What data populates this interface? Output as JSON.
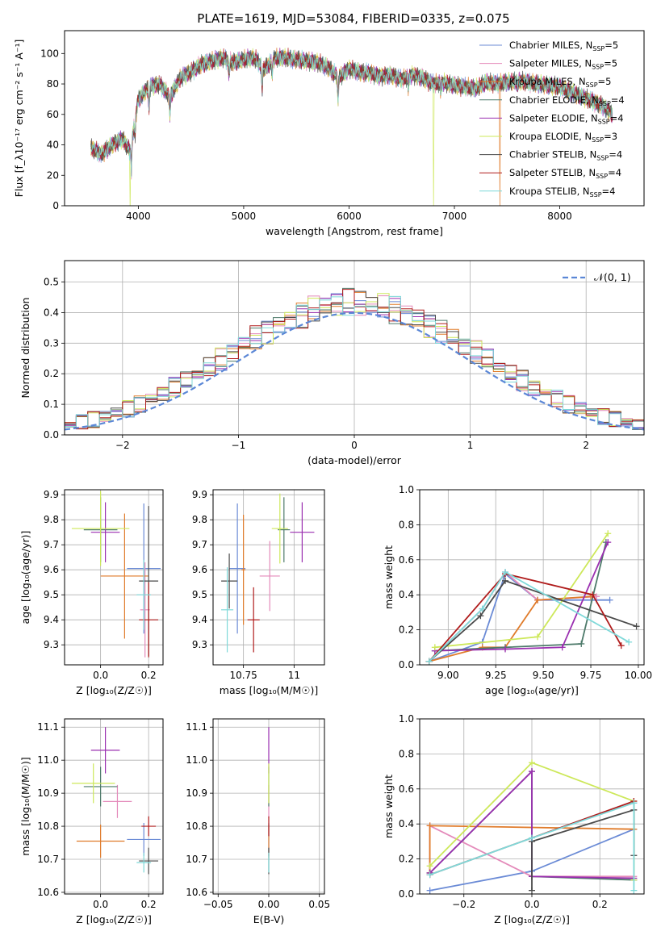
{
  "title": "PLATE=1619, MJD=53084, FIBERID=0335, z=0.075",
  "colors": {
    "Chabrier MILES": "#6b8bd6",
    "Salpeter MILES": "#e48aba",
    "Kroupa MILES": "#e07b2a",
    "Chabrier ELODIE": "#4d7a6a",
    "Salpeter ELODIE": "#9a2fb0",
    "Kroupa ELODIE": "#cde85a",
    "Chabrier STELIB": "#4a4a4a",
    "Salpeter STELIB": "#b01c1c",
    "Kroupa STELIB": "#7fd9d9"
  },
  "chart_data": [
    {
      "id": "spectrum",
      "type": "line",
      "xlabel": "wavelength [Angstrom, rest frame]",
      "ylabel": "Flux [f_λ10⁻¹⁷ erg cm⁻² s⁻¹ A⁻¹]",
      "xlim": [
        3300,
        8800
      ],
      "ylim": [
        0,
        115
      ],
      "xticks": [
        4000,
        5000,
        6000,
        7000,
        8000
      ],
      "yticks": [
        0,
        20,
        40,
        60,
        80,
        100
      ],
      "grid": false,
      "legend_placement": "top-right",
      "legend": [
        {
          "name": "Chabrier MILES",
          "label": "Chabrier MILES, N",
          "sub": "SSP",
          "suffix": "=5"
        },
        {
          "name": "Salpeter MILES",
          "label": "Salpeter MILES, N",
          "sub": "SSP",
          "suffix": "=5"
        },
        {
          "name": "Kroupa MILES",
          "label": "Kroupa MILES, N",
          "sub": "SSP",
          "suffix": "=5"
        },
        {
          "name": "Chabrier ELODIE",
          "label": "Chabrier ELODIE, N",
          "sub": "SSP",
          "suffix": "=4"
        },
        {
          "name": "Salpeter ELODIE",
          "label": "Salpeter ELODIE, N",
          "sub": "SSP",
          "suffix": "=4"
        },
        {
          "name": "Kroupa ELODIE",
          "label": "Kroupa ELODIE, N",
          "sub": "SSP",
          "suffix": "=3"
        },
        {
          "name": "Chabrier STELIB",
          "label": "Chabrier STELIB, N",
          "sub": "SSP",
          "suffix": "=4"
        },
        {
          "name": "Salpeter STELIB",
          "label": "Salpeter STELIB, N",
          "sub": "SSP",
          "suffix": "=4"
        },
        {
          "name": "Kroupa STELIB",
          "label": "Kroupa STELIB, N",
          "sub": "SSP",
          "suffix": "=4"
        }
      ],
      "continuum": [
        [
          3550,
          38
        ],
        [
          3650,
          34
        ],
        [
          3750,
          40
        ],
        [
          3850,
          44
        ],
        [
          3920,
          36
        ],
        [
          3960,
          52
        ],
        [
          4000,
          70
        ],
        [
          4100,
          78
        ],
        [
          4200,
          80
        ],
        [
          4300,
          72
        ],
        [
          4400,
          84
        ],
        [
          4500,
          88
        ],
        [
          4600,
          93
        ],
        [
          4700,
          95
        ],
        [
          4800,
          97
        ],
        [
          4900,
          94
        ],
        [
          5000,
          96
        ],
        [
          5100,
          97
        ],
        [
          5200,
          90
        ],
        [
          5300,
          97
        ],
        [
          5400,
          97
        ],
        [
          5500,
          96
        ],
        [
          5600,
          95
        ],
        [
          5700,
          94
        ],
        [
          5800,
          91
        ],
        [
          5900,
          84
        ],
        [
          6000,
          90
        ],
        [
          6100,
          88
        ],
        [
          6200,
          87
        ],
        [
          6300,
          85
        ],
        [
          6400,
          86
        ],
        [
          6500,
          83
        ],
        [
          6600,
          86
        ],
        [
          6700,
          84
        ],
        [
          6800,
          80
        ],
        [
          6900,
          81
        ],
        [
          7000,
          79
        ],
        [
          7100,
          78
        ],
        [
          7200,
          77
        ],
        [
          7300,
          81
        ],
        [
          7400,
          80
        ],
        [
          7600,
          82
        ],
        [
          7800,
          80
        ],
        [
          8000,
          78
        ],
        [
          8200,
          72
        ],
        [
          8400,
          66
        ],
        [
          8500,
          60
        ]
      ],
      "absorption_dips": [
        [
          3934,
          18
        ],
        [
          3969,
          10
        ],
        [
          4101,
          15
        ],
        [
          4300,
          14
        ],
        [
          4861,
          10
        ],
        [
          5175,
          16
        ],
        [
          5270,
          9
        ],
        [
          5895,
          16
        ],
        [
          6563,
          8
        ],
        [
          6870,
          6
        ],
        [
          7600,
          4
        ]
      ],
      "glitches": [
        {
          "series": "Kroupa ELODIE",
          "x": 3920
        },
        {
          "series": "Kroupa ELODIE",
          "x": 6800
        },
        {
          "series": "Kroupa MILES",
          "x": 7430
        }
      ]
    },
    {
      "id": "residual-histogram",
      "type": "bar",
      "xlabel": "(data-model)/error",
      "ylabel": "Normed distribution",
      "xlim": [
        -2.5,
        2.5
      ],
      "ylim": [
        0,
        0.57
      ],
      "xticks": [
        -2,
        -1,
        0,
        1,
        2
      ],
      "yticks": [
        0.0,
        0.1,
        0.2,
        0.3,
        0.4,
        0.5
      ],
      "grid": true,
      "reference_curve": {
        "label": "𝒩(0, 1)",
        "mean": 0,
        "sigma": 1,
        "color": "#5b87d6",
        "style": "dashed"
      },
      "legend_placement": "top-right",
      "bin_width": 0.1,
      "bin_start": -2.5,
      "bin_count": 50
    },
    {
      "id": "age-vs-Z",
      "type": "scatter",
      "xlabel": "Z [log₁₀(Z/Z☉)]",
      "ylabel": "age  [log₁₀(age/yr)]",
      "xlim": [
        -0.15,
        0.26
      ],
      "ylim": [
        9.22,
        9.92
      ],
      "xticks": [
        0.0,
        0.2
      ],
      "yticks": [
        9.3,
        9.4,
        9.5,
        9.6,
        9.7,
        9.8,
        9.9
      ],
      "grid": true,
      "points": [
        {
          "series": "Chabrier MILES",
          "x": 0.18,
          "y": 9.605,
          "xerr": 0.07,
          "yerr": 0.26
        },
        {
          "series": "Salpeter MILES",
          "x": 0.185,
          "y": 9.44,
          "xerr": 0.02,
          "yerr": 0.19
        },
        {
          "series": "Kroupa MILES",
          "x": 0.1,
          "y": 9.575,
          "xerr": 0.1,
          "yerr": 0.25
        },
        {
          "series": "Chabrier ELODIE",
          "x": 0.0,
          "y": 9.76,
          "xerr": 0.07,
          "yerr": 0.13
        },
        {
          "series": "Salpeter ELODIE",
          "x": 0.02,
          "y": 9.75,
          "xerr": 0.06,
          "yerr": 0.12
        },
        {
          "series": "Kroupa ELODIE",
          "x": 0.0,
          "y": 9.765,
          "xerr": 0.12,
          "yerr": 0.15
        },
        {
          "series": "Chabrier STELIB",
          "x": 0.2,
          "y": 9.555,
          "xerr": 0.04,
          "yerr": 0.3
        },
        {
          "series": "Salpeter STELIB",
          "x": 0.2,
          "y": 9.4,
          "xerr": 0.04,
          "yerr": 0.15
        },
        {
          "series": "Kroupa STELIB",
          "x": 0.18,
          "y": 9.5,
          "xerr": 0.03,
          "yerr": 0.14
        }
      ]
    },
    {
      "id": "age-vs-mass",
      "type": "scatter",
      "xlabel": "mass [log₁₀(M/M☉)]",
      "ylabel": "",
      "xlim": [
        10.6,
        11.15
      ],
      "ylim": [
        9.22,
        9.92
      ],
      "xticks": [
        10.75,
        11.0
      ],
      "yticks": [
        9.3,
        9.4,
        9.5,
        9.6,
        9.7,
        9.8,
        9.9
      ],
      "grid": true,
      "points": [
        {
          "series": "Chabrier MILES",
          "x": 10.72,
          "y": 9.605,
          "xerr": 0.04,
          "yerr": 0.26
        },
        {
          "series": "Salpeter MILES",
          "x": 10.88,
          "y": 9.575,
          "xerr": 0.05,
          "yerr": 0.14
        },
        {
          "series": "Kroupa MILES",
          "x": 10.75,
          "y": 9.6,
          "xerr": 0.01,
          "yerr": 0.22
        },
        {
          "series": "Chabrier ELODIE",
          "x": 10.95,
          "y": 9.76,
          "xerr": 0.03,
          "yerr": 0.13
        },
        {
          "series": "Salpeter ELODIE",
          "x": 11.04,
          "y": 9.75,
          "xerr": 0.06,
          "yerr": 0.12
        },
        {
          "series": "Kroupa ELODIE",
          "x": 10.93,
          "y": 9.765,
          "xerr": 0.04,
          "yerr": 0.14
        },
        {
          "series": "Chabrier STELIB",
          "x": 10.68,
          "y": 9.555,
          "xerr": 0.04,
          "yerr": 0.11
        },
        {
          "series": "Salpeter STELIB",
          "x": 10.8,
          "y": 9.4,
          "xerr": 0.03,
          "yerr": 0.13
        },
        {
          "series": "Kroupa STELIB",
          "x": 10.67,
          "y": 9.44,
          "xerr": 0.03,
          "yerr": 0.17
        }
      ]
    },
    {
      "id": "mass-weight-vs-age",
      "type": "line",
      "xlabel": "age  [log₁₀(age/yr)]",
      "ylabel": "mass weight",
      "xlim": [
        8.85,
        10.03
      ],
      "ylim": [
        0.0,
        1.0
      ],
      "xticks": [
        9.0,
        9.25,
        9.5,
        9.75,
        10.0
      ],
      "yticks": [
        0.0,
        0.2,
        0.4,
        0.6,
        0.8,
        1.0
      ],
      "grid": true,
      "series": [
        {
          "name": "Chabrier MILES",
          "x": [
            8.9,
            9.18,
            9.3,
            9.47,
            9.78,
            9.85
          ],
          "y": [
            0.02,
            0.13,
            0.52,
            0.37,
            0.37,
            0.37
          ]
        },
        {
          "name": "Salpeter MILES",
          "x": [
            8.9,
            9.18,
            9.3,
            9.47,
            9.78
          ],
          "y": [
            0.02,
            0.32,
            0.53,
            0.37,
            0.39
          ]
        },
        {
          "name": "Kroupa MILES",
          "x": [
            8.9,
            9.18,
            9.3,
            9.47,
            9.75
          ],
          "y": [
            0.02,
            0.1,
            0.1,
            0.37,
            0.39
          ]
        },
        {
          "name": "Chabrier ELODIE",
          "x": [
            8.93,
            9.3,
            9.7,
            9.83
          ],
          "y": [
            0.08,
            0.1,
            0.12,
            0.7
          ]
        },
        {
          "name": "Salpeter ELODIE",
          "x": [
            8.93,
            9.3,
            9.6,
            9.84
          ],
          "y": [
            0.08,
            0.09,
            0.1,
            0.7
          ]
        },
        {
          "name": "Kroupa ELODIE",
          "x": [
            8.93,
            9.47,
            9.84
          ],
          "y": [
            0.1,
            0.16,
            0.75
          ]
        },
        {
          "name": "Chabrier STELIB",
          "x": [
            8.9,
            9.17,
            9.3,
            9.99
          ],
          "y": [
            0.02,
            0.28,
            0.48,
            0.22
          ]
        },
        {
          "name": "Salpeter STELIB",
          "x": [
            8.9,
            9.3,
            9.76,
            9.91
          ],
          "y": [
            0.02,
            0.52,
            0.4,
            0.11
          ]
        },
        {
          "name": "Kroupa STELIB",
          "x": [
            8.9,
            9.18,
            9.3,
            9.95
          ],
          "y": [
            0.02,
            0.32,
            0.53,
            0.13
          ]
        }
      ]
    },
    {
      "id": "mass-vs-Z",
      "type": "scatter",
      "xlabel": "Z [log₁₀(Z/Z☉)]",
      "ylabel": "mass [log₁₀(M/M☉)]",
      "xlim": [
        -0.15,
        0.26
      ],
      "ylim": [
        10.595,
        11.125
      ],
      "xticks": [
        0.0,
        0.2
      ],
      "yticks": [
        10.6,
        10.7,
        10.8,
        10.9,
        11.0,
        11.1
      ],
      "grid": true,
      "points": [
        {
          "series": "Chabrier MILES",
          "x": 0.18,
          "y": 10.76,
          "xerr": 0.07,
          "yerr": 0.05
        },
        {
          "series": "Salpeter MILES",
          "x": 0.07,
          "y": 10.875,
          "xerr": 0.06,
          "yerr": 0.05
        },
        {
          "series": "Kroupa MILES",
          "x": 0.0,
          "y": 10.755,
          "xerr": 0.1,
          "yerr": 0.05
        },
        {
          "series": "Chabrier ELODIE",
          "x": 0.0,
          "y": 10.92,
          "xerr": 0.07,
          "yerr": 0.06
        },
        {
          "series": "Salpeter ELODIE",
          "x": 0.02,
          "y": 11.03,
          "xerr": 0.06,
          "yerr": 0.07
        },
        {
          "series": "Kroupa ELODIE",
          "x": -0.03,
          "y": 10.93,
          "xerr": 0.09,
          "yerr": 0.06
        },
        {
          "series": "Chabrier STELIB",
          "x": 0.2,
          "y": 10.695,
          "xerr": 0.04,
          "yerr": 0.04
        },
        {
          "series": "Salpeter STELIB",
          "x": 0.2,
          "y": 10.8,
          "xerr": 0.03,
          "yerr": 0.03
        },
        {
          "series": "Kroupa STELIB",
          "x": 0.18,
          "y": 10.69,
          "xerr": 0.03,
          "yerr": 0.03
        }
      ]
    },
    {
      "id": "mass-vs-ebv",
      "type": "scatter",
      "xlabel": "E(B-V)",
      "ylabel": "",
      "xlim": [
        -0.055,
        0.055
      ],
      "ylim": [
        10.595,
        11.125
      ],
      "xticks": [
        -0.05,
        0.0,
        0.05
      ],
      "yticks": [
        10.6,
        10.7,
        10.8,
        10.9,
        11.0,
        11.1
      ],
      "grid": true,
      "points": [
        {
          "series": "Chabrier MILES",
          "x": 0.0,
          "y": 10.76,
          "xerr": 0.0,
          "yerr": 0.05
        },
        {
          "series": "Salpeter MILES",
          "x": 0.0,
          "y": 10.875,
          "xerr": 0.0,
          "yerr": 0.05
        },
        {
          "series": "Kroupa MILES",
          "x": 0.0,
          "y": 10.755,
          "xerr": 0.0,
          "yerr": 0.05
        },
        {
          "series": "Chabrier ELODIE",
          "x": 0.0,
          "y": 10.92,
          "xerr": 0.0,
          "yerr": 0.06
        },
        {
          "series": "Salpeter ELODIE",
          "x": 0.0,
          "y": 11.03,
          "xerr": 0.0,
          "yerr": 0.07
        },
        {
          "series": "Kroupa ELODIE",
          "x": 0.0,
          "y": 10.93,
          "xerr": 0.0,
          "yerr": 0.06
        },
        {
          "series": "Chabrier STELIB",
          "x": 0.0,
          "y": 10.695,
          "xerr": 0.0,
          "yerr": 0.04
        },
        {
          "series": "Salpeter STELIB",
          "x": 0.0,
          "y": 10.8,
          "xerr": 0.0,
          "yerr": 0.03
        },
        {
          "series": "Kroupa STELIB",
          "x": 0.0,
          "y": 10.69,
          "xerr": 0.0,
          "yerr": 0.03
        }
      ]
    },
    {
      "id": "mass-weight-vs-Z",
      "type": "line",
      "xlabel": "Z [log₁₀(Z/Z☉)]",
      "ylabel": "mass weight",
      "xlim": [
        -0.33,
        0.33
      ],
      "ylim": [
        0.0,
        1.0
      ],
      "xticks": [
        -0.2,
        0.0,
        0.2
      ],
      "yticks": [
        0.0,
        0.2,
        0.4,
        0.6,
        0.8,
        1.0
      ],
      "grid": true,
      "series": [
        {
          "name": "Chabrier MILES",
          "x": [
            -0.3,
            0.0,
            0.3,
            0.3
          ],
          "y": [
            0.02,
            0.13,
            0.37,
            0.52
          ]
        },
        {
          "name": "Salpeter MILES",
          "x": [
            -0.3,
            -0.3,
            0.0,
            0.3
          ],
          "y": [
            0.12,
            0.39,
            0.1,
            0.1
          ]
        },
        {
          "name": "Kroupa MILES",
          "x": [
            -0.3,
            -0.3,
            0.3
          ],
          "y": [
            0.12,
            0.39,
            0.37
          ]
        },
        {
          "name": "Chabrier ELODIE",
          "x": [
            -0.3,
            0.0,
            0.0,
            0.3
          ],
          "y": [
            0.12,
            0.7,
            0.1,
            0.08
          ]
        },
        {
          "name": "Salpeter ELODIE",
          "x": [
            -0.3,
            0.0,
            0.0,
            0.3
          ],
          "y": [
            0.12,
            0.7,
            0.1,
            0.09
          ]
        },
        {
          "name": "Kroupa ELODIE",
          "x": [
            -0.3,
            0.0,
            0.3,
            0.3
          ],
          "y": [
            0.16,
            0.75,
            0.53,
            0.08
          ]
        },
        {
          "name": "Chabrier STELIB",
          "x": [
            0.0,
            0.0,
            0.3,
            0.3
          ],
          "y": [
            0.02,
            0.3,
            0.48,
            0.22
          ]
        },
        {
          "name": "Salpeter STELIB",
          "x": [
            -0.3,
            0.3
          ],
          "y": [
            0.11,
            0.53
          ]
        },
        {
          "name": "Kroupa STELIB",
          "x": [
            -0.3,
            0.0,
            0.3,
            0.3
          ],
          "y": [
            0.11,
            0.32,
            0.52,
            0.02
          ]
        }
      ]
    }
  ]
}
